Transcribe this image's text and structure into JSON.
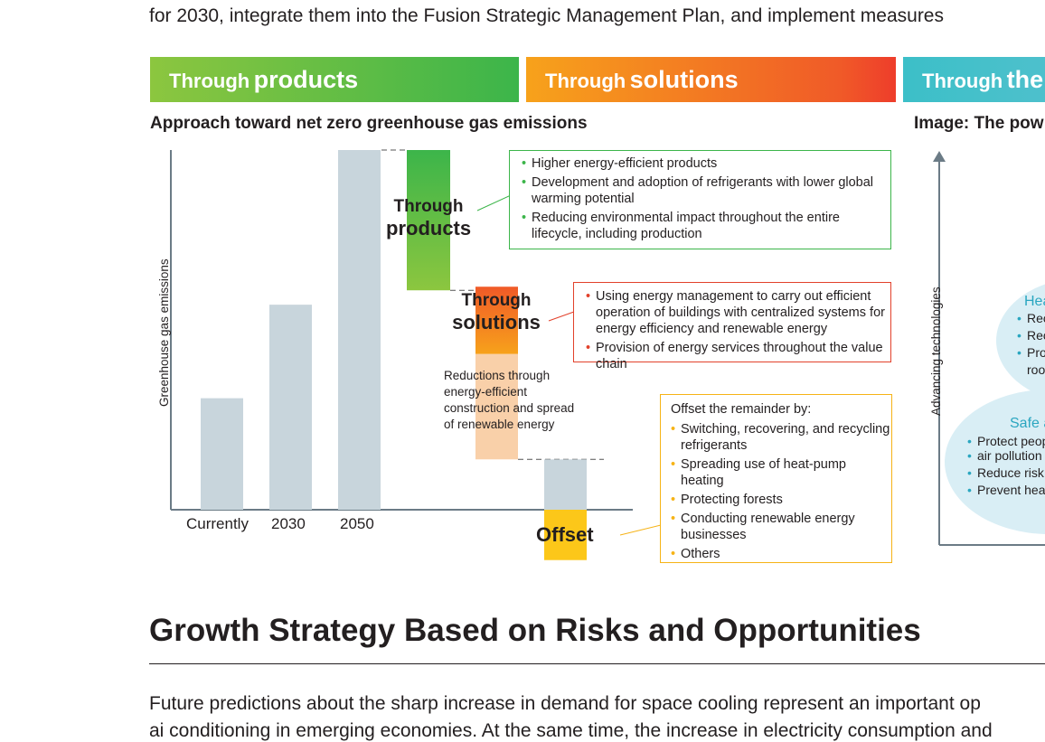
{
  "intro_line": "for 2030, integrate them into the Fusion Strategic Management Plan, and implement measures",
  "banners": {
    "products": {
      "small": "Through",
      "big": "products"
    },
    "solutions": {
      "small": "Through",
      "big": "solutions"
    },
    "third": {
      "small": "Through",
      "big": "the"
    }
  },
  "chart_heading": "Approach toward net zero greenhouse gas emissions",
  "right_heading": "Image: The pow",
  "chart_data": {
    "type": "bar",
    "ylabel": "Greenhouse gas emissions",
    "categories": [
      "Currently",
      "2030",
      "2050"
    ],
    "values": [
      31,
      57,
      100
    ],
    "steps": [
      {
        "name": "products",
        "label_line1": "Through",
        "label_line2": "products",
        "from": 100,
        "to": 61
      },
      {
        "name": "solutions",
        "label_line1": "Through",
        "label_line2": "solutions",
        "from": 62,
        "to": 14
      },
      {
        "name": "offset",
        "label": "Offset",
        "from": 14,
        "to": 0
      }
    ],
    "ylim": [
      0,
      100
    ],
    "colors": {
      "bar": "#c8d5dc",
      "products_top": "#3cb54a",
      "products_bottom": "#8cc63f",
      "solutions_top": "#f05a28",
      "solutions_bottom": "#f7a21b",
      "solutions_reduction": "#f8cba0",
      "offset": "#fcc719"
    }
  },
  "box_products": {
    "items": [
      "Higher energy-efficient products",
      "Development and adoption of refrigerants with lower global warming potential",
      "Reducing environmental impact throughout the entire lifecycle, including production"
    ]
  },
  "box_solutions": {
    "items": [
      "Using energy management to carry out efficient operation of buildings with centralized systems for energy efficiency and renewable energy",
      "Provision of energy services throughout the value chain"
    ]
  },
  "reductions_note": [
    "Reductions through",
    "energy-efficient",
    "construction and spread",
    "of renewable energy"
  ],
  "box_offset": {
    "head": "Offset the remainder by:",
    "items": [
      "Switching, recovering, and recycling refrigerants",
      "Spreading use of heat-pump heating",
      "Protecting forests",
      "Conducting renewable energy businesses",
      "Others"
    ]
  },
  "right_axis_label": "Advancing technologies",
  "blob_upper": {
    "title": "Hea",
    "items": [
      "Rec",
      "Rec",
      "Pro",
      "roo"
    ]
  },
  "blob_lower": {
    "title": "Safe a",
    "items": [
      "Protect peop",
      "air pollution",
      "Reduce risk c",
      "Prevent heat"
    ]
  },
  "section_heading": "Growth Strategy Based on Risks and Opportunities",
  "outro_line": "Future predictions about the sharp increase in demand for space cooling represent an important op",
  "outro_line2": "ai conditioning in emerging economies. At the same time, the increase in electricity consumption and"
}
